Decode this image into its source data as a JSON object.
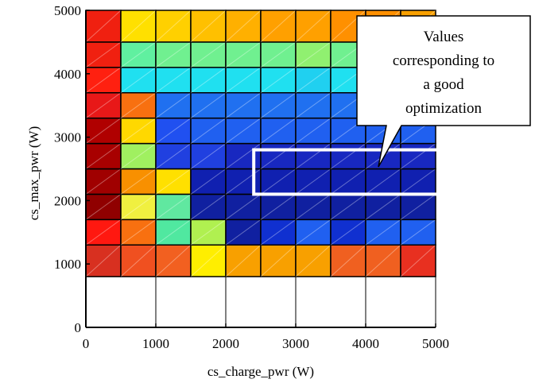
{
  "chart_data": {
    "type": "heatmap",
    "title": "",
    "xlabel": "cs_charge_pwr (W)",
    "ylabel": "cs_max_pwr (W)",
    "xlim": [
      0,
      5000
    ],
    "ylim": [
      0,
      5000
    ],
    "x_ticks": [
      "0",
      "1000",
      "2000",
      "3000",
      "4000",
      "5000"
    ],
    "y_ticks": [
      "0",
      "1000",
      "2000",
      "3000",
      "4000",
      "5000"
    ],
    "x_bins": [
      0,
      500,
      1000,
      1500,
      2000,
      2500,
      3000,
      3500,
      4000,
      4500,
      5000
    ],
    "y_bins": [
      800,
      1300,
      1700,
      2100,
      2500,
      2900,
      3300,
      3700,
      4100,
      4500,
      5000
    ],
    "cells_bottom_to_top": [
      [
        "#d83020",
        "#f05020",
        "#f26020",
        "#ffee00",
        "#f8a000",
        "#f8a000",
        "#f8a000",
        "#f06020",
        "#f06020",
        "#e83020"
      ],
      [
        "#ff1810",
        "#f87010",
        "#50e8a0",
        "#b0f050",
        "#1020a0",
        "#1030d0",
        "#2060f0",
        "#1030d0",
        "#2060f0",
        "#2060f0"
      ],
      [
        "#900000",
        "#f0f040",
        "#60e8a0",
        "#1020a0",
        "#1020a0",
        "#1020a0",
        "#1020a0",
        "#1020a0",
        "#1020a0",
        "#1020a0"
      ],
      [
        "#a00000",
        "#f89000",
        "#ffe000",
        "#1020b0",
        "#1020b0",
        "#1020b0",
        "#1020b0",
        "#1020b0",
        "#1020b0",
        "#1020b0"
      ],
      [
        "#a80000",
        "#a0f060",
        "#2040e0",
        "#2040e0",
        "#1828c0",
        "#1828c0",
        "#1828c0",
        "#1828c0",
        "#1828c0",
        "#1828c0"
      ],
      [
        "#b00000",
        "#ffd800",
        "#2050f0",
        "#2060f0",
        "#2060f0",
        "#2060f0",
        "#2060f0",
        "#2060f0",
        "#2060f0",
        "#2060f0"
      ],
      [
        "#e81818",
        "#f87010",
        "#2070f0",
        "#2070f0",
        "#2070f0",
        "#2070f0",
        "#2070f0",
        "#2070f0",
        "#2070f0",
        "#2070f0"
      ],
      [
        "#ff2010",
        "#20e0f0",
        "#20e0f0",
        "#20e0f0",
        "#20e0f0",
        "#20e0f0",
        "#20d0f0",
        "#20e0f0",
        "#20e0f0",
        "#20d0f0"
      ],
      [
        "#f02010",
        "#60f0a0",
        "#70f090",
        "#70f090",
        "#70f090",
        "#70f090",
        "#90f070",
        "#70f090",
        "#70f090",
        "#90f070"
      ],
      [
        "#f02010",
        "#ffe000",
        "#ffd000",
        "#ffc000",
        "#ffb000",
        "#ffa000",
        "#ffa000",
        "#ff9000",
        "#ff9000",
        "#f8a000"
      ]
    ],
    "highlight": {
      "x_range": [
        2400,
        5000
      ],
      "y_range": [
        2100,
        2800
      ]
    },
    "annotation": {
      "lines": [
        "Values",
        "corresponding to",
        "a good",
        "optimization"
      ]
    },
    "grid": true
  }
}
